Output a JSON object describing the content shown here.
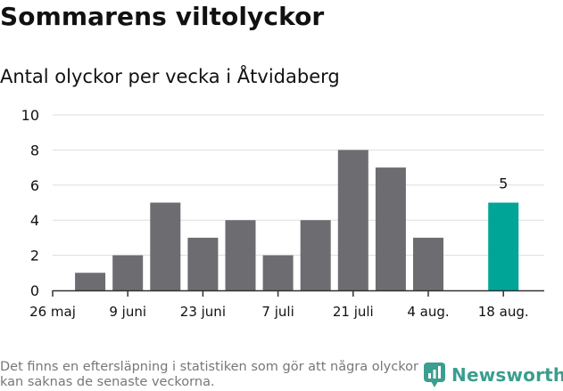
{
  "header": {
    "title": "Sommarens viltolyckor",
    "subtitle": "Antal olyckor per vecka i Åtvidaberg"
  },
  "footer": {
    "note": "Det finns en eftersläpning i statistiken som gör att några olyckor kan saknas de senaste veckorna.",
    "brand": "Newsworthy"
  },
  "colors": {
    "bar": "#6d6c71",
    "highlight": "#00a598",
    "grid": "#dddddd",
    "axis": "#333333",
    "brand": "#3b9e8f"
  },
  "chart_data": {
    "type": "bar",
    "x": [
      "2023-05-26",
      "2023-06-02",
      "2023-06-09",
      "2023-06-16",
      "2023-06-23",
      "2023-06-30",
      "2023-07-07",
      "2023-07-14",
      "2023-07-21",
      "2023-07-28",
      "2023-08-04",
      "2023-08-11",
      "2023-08-18"
    ],
    "values": [
      null,
      1,
      2,
      5,
      3,
      4,
      2,
      4,
      8,
      7,
      3,
      null,
      5
    ],
    "tick_labels": [
      "26 maj",
      "9 juni",
      "23 juni",
      "7 juli",
      "21 juli",
      "4 aug.",
      "18 aug."
    ],
    "yticks": [
      0,
      2,
      4,
      6,
      8,
      10
    ],
    "ylim": [
      0,
      10
    ],
    "highlight_index": 12,
    "highlight_label": "5",
    "grid": true,
    "xlabel": "",
    "ylabel": ""
  }
}
